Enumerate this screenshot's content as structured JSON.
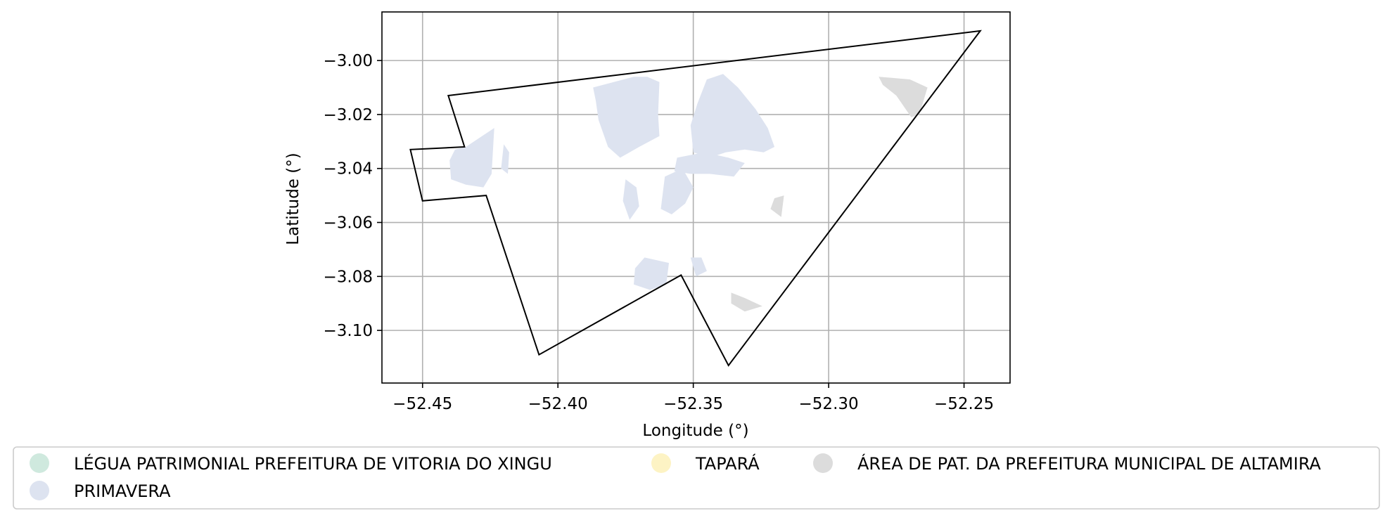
{
  "chart_data": {
    "type": "map",
    "xlabel": "Longitude (°)",
    "ylabel": "Latitude (°)",
    "xlim": [
      -52.465,
      -52.233
    ],
    "ylim": [
      -3.1195,
      -2.982
    ],
    "xticks": [
      -52.45,
      -52.4,
      -52.35,
      -52.3,
      -52.25
    ],
    "yticks": [
      -3.0,
      -3.02,
      -3.04,
      -3.06,
      -3.08,
      -3.1
    ],
    "xtick_labels": [
      "−52.45",
      "−52.40",
      "−52.35",
      "−52.30",
      "−52.25"
    ],
    "ytick_labels": [
      "−3.00",
      "−3.02",
      "−3.04",
      "−3.06",
      "−3.08",
      "−3.10"
    ],
    "grid": true,
    "boundary_outline": [
      [
        -52.4405,
        -3.013
      ],
      [
        -52.244,
        -2.989
      ],
      [
        -52.337,
        -3.113
      ],
      [
        -52.3545,
        -3.0795
      ],
      [
        -52.407,
        -3.109
      ],
      [
        -52.4265,
        -3.05
      ],
      [
        -52.45,
        -3.052
      ],
      [
        -52.4545,
        -3.033
      ],
      [
        -52.4345,
        -3.032
      ]
    ],
    "legend": {
      "placement": "bottom-center",
      "entries": [
        {
          "label": "LÉGUA PATRIMONIAL PREFEITURA DE VITORIA DO XINGU",
          "color": "#cfe9de"
        },
        {
          "label": "TAPARÁ",
          "color": "#fdf3c4"
        },
        {
          "label": "ÁREA DE PAT. DA PREFEITURA MUNICIPAL DE ALTAMIRA",
          "color": "#dcdcdc"
        },
        {
          "label": "PRIMAVERA",
          "color": "#dde3f0"
        }
      ]
    },
    "regions": [
      {
        "name": "PRIMAVERA",
        "color": "#dde3f0",
        "polygons": [
          [
            [
              -52.434,
              -3.032
            ],
            [
              -52.428,
              -3.028
            ],
            [
              -52.4235,
              -3.025
            ],
            [
              -52.4245,
              -3.042
            ],
            [
              -52.4275,
              -3.047
            ],
            [
              -52.434,
              -3.046
            ],
            [
              -52.4395,
              -3.044
            ],
            [
              -52.44,
              -3.037
            ],
            [
              -52.438,
              -3.033
            ]
          ],
          [
            [
              -52.387,
              -3.01
            ],
            [
              -52.372,
              -3.006
            ],
            [
              -52.367,
              -3.006
            ],
            [
              -52.3625,
              -3.008
            ],
            [
              -52.363,
              -3.02
            ],
            [
              -52.3625,
              -3.028
            ],
            [
              -52.37,
              -3.032
            ],
            [
              -52.377,
              -3.036
            ],
            [
              -52.3815,
              -3.032
            ],
            [
              -52.385,
              -3.022
            ],
            [
              -52.386,
              -3.015
            ]
          ],
          [
            [
              -52.3485,
              -3.016
            ],
            [
              -52.345,
              -3.007
            ],
            [
              -52.339,
              -3.005
            ],
            [
              -52.3335,
              -3.01
            ],
            [
              -52.327,
              -3.018
            ],
            [
              -52.3225,
              -3.025
            ],
            [
              -52.32,
              -3.032
            ],
            [
              -52.324,
              -3.034
            ],
            [
              -52.331,
              -3.033
            ],
            [
              -52.338,
              -3.034
            ],
            [
              -52.344,
              -3.036
            ],
            [
              -52.35,
              -3.034
            ],
            [
              -52.351,
              -3.024
            ]
          ],
          [
            [
              -52.356,
              -3.036
            ],
            [
              -52.346,
              -3.034
            ],
            [
              -52.337,
              -3.036
            ],
            [
              -52.331,
              -3.038
            ],
            [
              -52.335,
              -3.043
            ],
            [
              -52.344,
              -3.042
            ],
            [
              -52.351,
              -3.042
            ],
            [
              -52.357,
              -3.041
            ]
          ],
          [
            [
              -52.3605,
              -3.043
            ],
            [
              -52.354,
              -3.04
            ],
            [
              -52.35,
              -3.047
            ],
            [
              -52.353,
              -3.053
            ],
            [
              -52.358,
              -3.057
            ],
            [
              -52.362,
              -3.055
            ]
          ],
          [
            [
              -52.375,
              -3.044
            ],
            [
              -52.371,
              -3.047
            ],
            [
              -52.37,
              -3.054
            ],
            [
              -52.3735,
              -3.059
            ],
            [
              -52.376,
              -3.052
            ]
          ],
          [
            [
              -52.359,
              -3.075
            ],
            [
              -52.368,
              -3.073
            ],
            [
              -52.3715,
              -3.077
            ],
            [
              -52.372,
              -3.083
            ],
            [
              -52.366,
              -3.085
            ],
            [
              -52.36,
              -3.083
            ]
          ],
          [
            [
              -52.351,
              -3.073
            ],
            [
              -52.347,
              -3.073
            ],
            [
              -52.345,
              -3.078
            ],
            [
              -52.349,
              -3.08
            ]
          ],
          [
            [
              -52.42,
              -3.031
            ],
            [
              -52.418,
              -3.034
            ],
            [
              -52.4185,
              -3.042
            ],
            [
              -52.421,
              -3.04
            ]
          ]
        ]
      },
      {
        "name": "ÁREA DE PAT. DA PREFEITURA MUNICIPAL DE ALTAMIRA",
        "color": "#dcdcdc",
        "polygons": [
          [
            [
              -52.2815,
              -3.006
            ],
            [
              -52.27,
              -3.007
            ],
            [
              -52.2635,
              -3.01
            ],
            [
              -52.2665,
              -3.02
            ],
            [
              -52.2695,
              -3.021
            ],
            [
              -52.275,
              -3.013
            ],
            [
              -52.28,
              -3.009
            ]
          ],
          [
            [
              -52.32,
              -3.051
            ],
            [
              -52.3165,
              -3.05
            ],
            [
              -52.3175,
              -3.058
            ],
            [
              -52.3215,
              -3.055
            ]
          ],
          [
            [
              -52.336,
              -3.086
            ],
            [
              -52.331,
              -3.088
            ],
            [
              -52.3245,
              -3.091
            ],
            [
              -52.331,
              -3.093
            ],
            [
              -52.336,
              -3.09
            ]
          ]
        ]
      }
    ]
  }
}
